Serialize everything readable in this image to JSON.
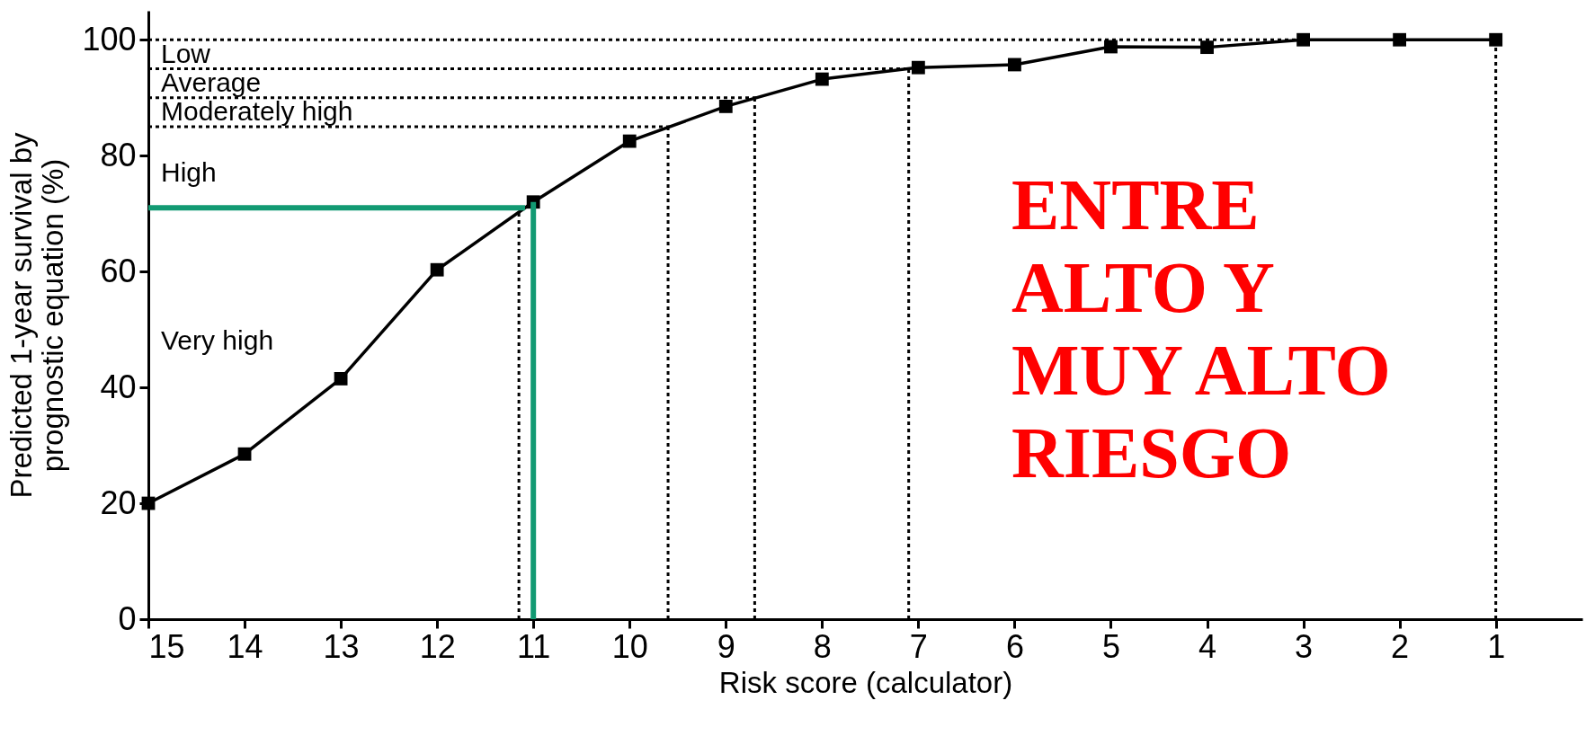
{
  "chart_data": {
    "type": "line",
    "xlabel": "Risk score (calculator)",
    "ylabel": "Predicted 1-year survival by\nprognostic equation (%)",
    "x": [
      15,
      14,
      13,
      12,
      11,
      10,
      9,
      8,
      7,
      6,
      5,
      4,
      3,
      2,
      1
    ],
    "series": [
      {
        "color": "#000000",
        "values": [
          20,
          28.5,
          41.5,
          60.3,
          72,
          82.5,
          88.5,
          93.2,
          95.2,
          95.7,
          98.8,
          98.7,
          100,
          100,
          100
        ]
      }
    ],
    "xlim": [
      15,
      0.1
    ],
    "xticks": [
      15,
      14,
      13,
      12,
      11,
      10,
      9,
      8,
      7,
      6,
      5,
      4,
      3,
      2,
      1
    ],
    "ylim": [
      0,
      105
    ],
    "yticks": [
      0,
      20,
      40,
      60,
      80,
      100
    ],
    "marker": "square",
    "line_style": "solid",
    "grid": false,
    "ref_lines": [
      {
        "axis": "y",
        "value": 100,
        "line_style": "dotted",
        "color": "#000000"
      },
      {
        "axis": "y",
        "value": 95,
        "line_style": "dotted",
        "color": "#000000"
      },
      {
        "axis": "y",
        "value": 90,
        "line_style": "dotted",
        "color": "#000000"
      },
      {
        "axis": "y",
        "value": 85,
        "line_style": "dotted",
        "color": "#000000"
      },
      {
        "axis": "x",
        "value": 11.15,
        "line_style": "dotted",
        "color": "#000000"
      },
      {
        "axis": "x",
        "value": 9.6,
        "line_style": "dotted",
        "color": "#000000"
      },
      {
        "axis": "x",
        "value": 8.7,
        "line_style": "dotted",
        "color": "#000000"
      },
      {
        "axis": "x",
        "value": 7.1,
        "line_style": "dotted",
        "color": "#000000"
      },
      {
        "axis": "x",
        "value": 1,
        "line_style": "dotted",
        "color": "#000000"
      },
      {
        "axis": "y",
        "value": 71,
        "line_style": "solid",
        "color": "#129a73"
      },
      {
        "axis": "x",
        "value": 11,
        "line_style": "solid",
        "color": "#129a73"
      }
    ],
    "annotations": [
      "Low",
      "Average",
      "Moderately high",
      "High",
      "Very high",
      "ENTRE\nALTO Y\nMUY ALTO\nRIESGO"
    ]
  }
}
